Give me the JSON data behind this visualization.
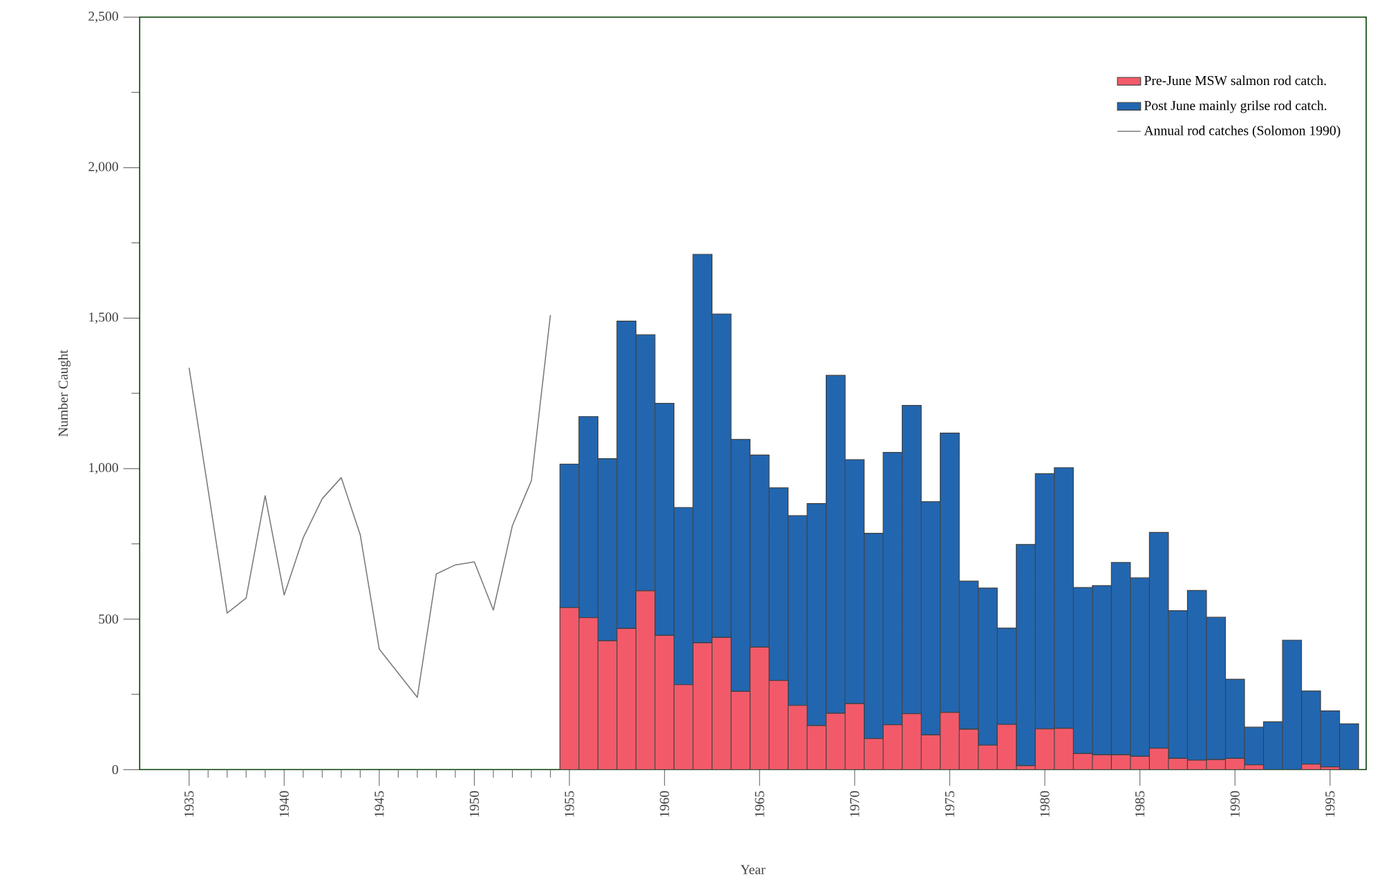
{
  "chart_data": {
    "type": "bar",
    "stacked": true,
    "xlabel": "Year",
    "ylabel": "Number Caught",
    "xlim": [
      1932.4,
      1996.9
    ],
    "ylim": [
      0,
      2500
    ],
    "xticks": [
      1935,
      {
        "value": 1936,
        "label": null
      },
      {
        "value": 1937,
        "label": null
      },
      {
        "value": 1938,
        "label": null
      },
      {
        "value": 1939,
        "label": null
      },
      1940,
      {
        "value": 1941,
        "label": null
      },
      {
        "value": 1942,
        "label": null
      },
      {
        "value": 1943,
        "label": null
      },
      {
        "value": 1944,
        "label": null
      },
      1945,
      {
        "value": 1946,
        "label": null
      },
      {
        "value": 1947,
        "label": null
      },
      {
        "value": 1948,
        "label": null
      },
      {
        "value": 1949,
        "label": null
      },
      1950,
      {
        "value": 1951,
        "label": null
      },
      {
        "value": 1952,
        "label": null
      },
      {
        "value": 1953,
        "label": null
      },
      {
        "value": 1954,
        "label": null
      },
      1955,
      1960,
      1965,
      1970,
      1975,
      1980,
      1985,
      1990,
      1995
    ],
    "yticks": [
      0,
      500,
      {
        "value": 1000,
        "label": "1,000"
      },
      {
        "value": 1500,
        "label": "1,500"
      },
      {
        "value": 2000,
        "label": "2,000"
      },
      {
        "value": 2500,
        "label": "2,500"
      }
    ],
    "legend": "top right",
    "series": [
      {
        "name": "Pre-June MSW salmon rod catch.",
        "color": "#f25a6a",
        "x": [
          1955,
          1956,
          1957,
          1958,
          1959,
          1960,
          1961,
          1962,
          1963,
          1964,
          1965,
          1966,
          1967,
          1968,
          1969,
          1970,
          1971,
          1972,
          1973,
          1974,
          1975,
          1976,
          1977,
          1978,
          1979,
          1980,
          1981,
          1982,
          1983,
          1984,
          1985,
          1986,
          1987,
          1988,
          1989,
          1990,
          1991,
          1992,
          1993,
          1994,
          1995,
          1996
        ],
        "values": [
          538,
          505,
          428,
          469,
          594,
          446,
          282,
          421,
          439,
          260,
          407,
          296,
          213,
          146,
          187,
          219,
          103,
          149,
          186,
          115,
          190,
          134,
          81,
          150,
          13,
          135,
          137,
          53,
          49,
          49,
          44,
          71,
          37,
          31,
          33,
          37,
          16,
          0,
          0,
          18,
          9,
          0
        ]
      },
      {
        "name": "Post June mainly grilse rod catch.",
        "color": "#2266b0",
        "x": [
          1955,
          1956,
          1957,
          1958,
          1959,
          1960,
          1961,
          1962,
          1963,
          1964,
          1965,
          1966,
          1967,
          1968,
          1969,
          1970,
          1971,
          1972,
          1973,
          1974,
          1975,
          1976,
          1977,
          1978,
          1979,
          1980,
          1981,
          1982,
          1983,
          1984,
          1985,
          1986,
          1987,
          1988,
          1989,
          1990,
          1991,
          1992,
          1993,
          1994,
          1995,
          1996
        ],
        "values": [
          477,
          668,
          605,
          1021,
          851,
          771,
          589,
          1291,
          1075,
          837,
          638,
          640,
          631,
          738,
          1123,
          811,
          682,
          905,
          1024,
          775,
          928,
          492,
          522,
          320,
          735,
          848,
          866,
          552,
          562,
          639,
          593,
          717,
          491,
          564,
          473,
          263,
          125,
          159,
          430,
          243,
          186,
          152
        ]
      },
      {
        "name": "Annual rod catches (Solomon 1990)",
        "type": "line",
        "color": "#7a7a7a",
        "x": [
          1935,
          1936,
          1937,
          1938,
          1939,
          1940,
          1941,
          1942,
          1943,
          1944,
          1945,
          1946,
          1947,
          1948,
          1949,
          1950,
          1951,
          1952,
          1953,
          1954
        ],
        "values": [
          1335,
          930,
          520,
          570,
          910,
          580,
          770,
          900,
          970,
          780,
          400,
          320,
          240,
          650,
          680,
          690,
          530,
          810,
          960,
          1510
        ]
      }
    ]
  }
}
